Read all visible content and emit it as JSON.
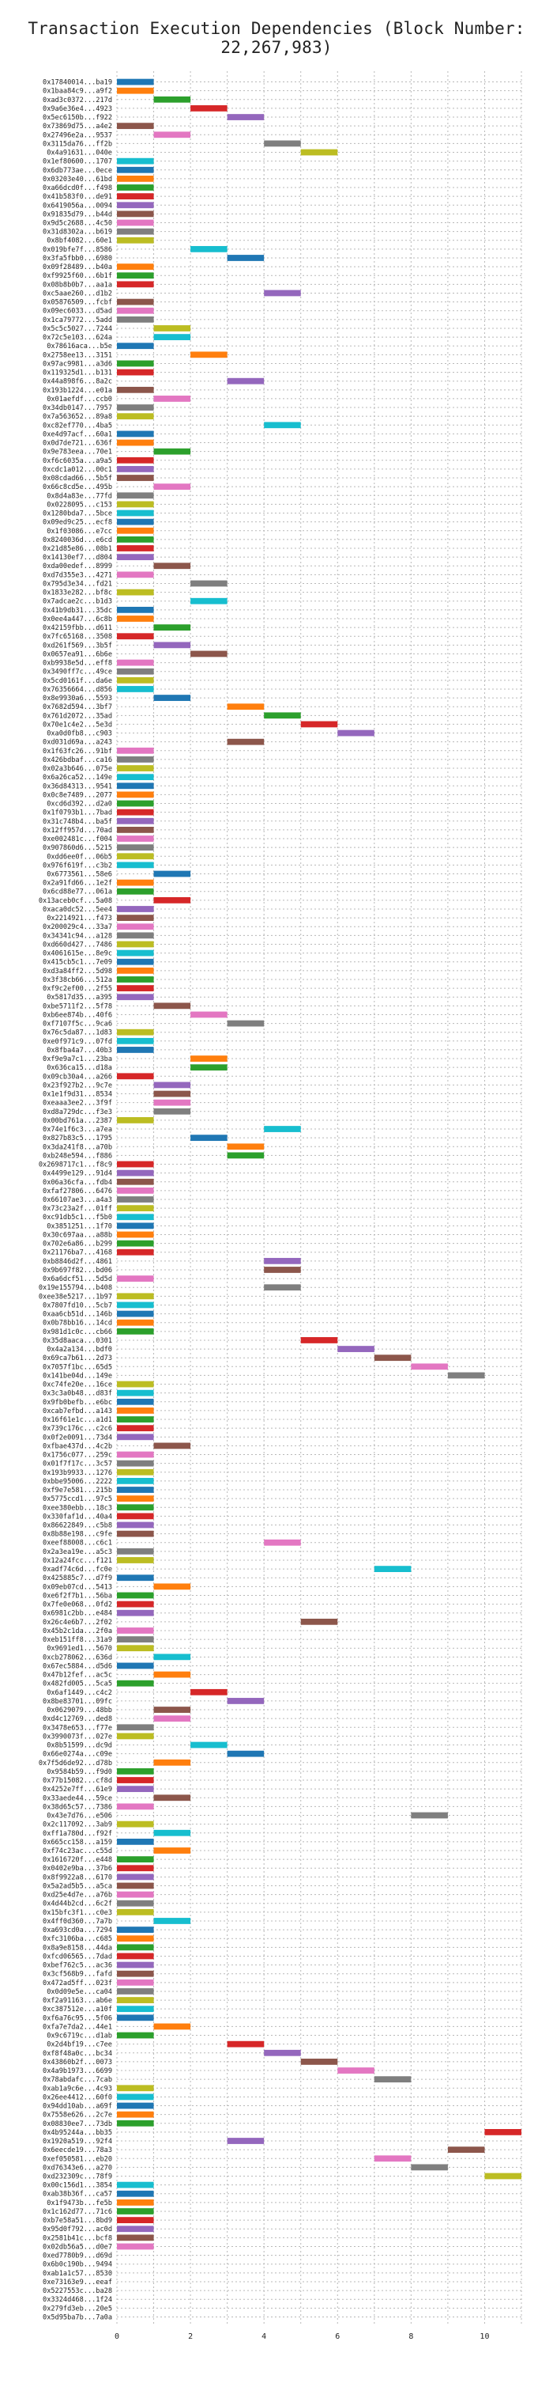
{
  "chart_data": {
    "type": "bar",
    "orientation": "horizontal",
    "title": "Transaction Execution Dependencies (Block Number: 22,267,983)",
    "xlabel": "",
    "ylabel": "",
    "xlim": [
      0,
      11
    ],
    "xticks": [
      "0",
      "2",
      "4",
      "6",
      "8",
      "10"
    ],
    "grid": true,
    "legend": "none",
    "bar_span": 1,
    "palette": [
      "#1f77b4",
      "#ff7f0e",
      "#2ca02c",
      "#d62728",
      "#9467bd",
      "#8c564b",
      "#e377c2",
      "#7f7f7f",
      "#bcbd22",
      "#17becf"
    ],
    "transactions": [
      "0x17840014...ba19",
      "0x1baa84c9...a9f2",
      "0xad3c0372...217d",
      "0x9a6e36e4...4923",
      "0x5ec6150b...f922",
      "0x73869d75...a4e2",
      "0x27496e2a...9537",
      "0x3115da76...ff2b",
      "0x4a91631...040e",
      "0x1ef80600...1707",
      "0x6db773ae...0ece",
      "0x03203e40...61bd",
      "0xa66dcd0f...f498",
      "0x41b583f0...de91",
      "0x6419056a...0094",
      "0x91835d79...b44d",
      "0x9d5c2688...4c50",
      "0x31d8302a...b619",
      "0x8bf4082...60e1",
      "0x019bfe7f...8586",
      "0x3fa5fbb0...6980",
      "0x09f28489...b40a",
      "0xf9925f60...6b1f",
      "0x08b8b0b7...aa1a",
      "0xc5aae260...d1b2",
      "0x05876509...fcbf",
      "0x09ec6033...d5ad",
      "0x1ca79772...5add",
      "0x5c5c5027...7244",
      "0x72c5e103...624a",
      "0x78616aca...b5e",
      "0x2758ee13...3151",
      "0x97ac9981...a3d6",
      "0x119325d1...b131",
      "0x44a898f6...8a2c",
      "0x193b1224...e01a",
      "0x01aefdf...ccb0",
      "0x34db0147...7957",
      "0x7a563652...89a8",
      "0xc82ef770...4ba5",
      "0xe4d97acf...60a1",
      "0x0d7de721...636f",
      "0x9e783eea...70e1",
      "0xf6c6035a...a9a5",
      "0xcdc1a012...00c1",
      "0x08cdad66...5b5f",
      "0x66c8cd5e...495b",
      "0x8d4a83e...77fd",
      "0x0228095...c153",
      "0x1280bda7...5bce",
      "0x09ed9c25...ecf8",
      "0x1f03086...e7cc",
      "0x8240036d...e6cd",
      "0x21d85e86...08b1",
      "0x14130ef7...d804",
      "0xda00edef...8999",
      "0xd7d355e3...4271",
      "0x795d3e34...fd21",
      "0x1833e282...bf8c",
      "0x7adcae2c...b1d3",
      "0x41b9db31...35dc",
      "0x0ee4a447...6c8b",
      "0x42159fbb...d611",
      "0x7fc65168...3508",
      "0xd261f569...3b5f",
      "0x0657ea91...6b6e",
      "0xb9938e5d...eff8",
      "0x3490ff7c...49ce",
      "0x5cd0161f...da6e",
      "0x76356664...d856",
      "0x8e9930a6...5593",
      "0x7682d594...3bf7",
      "0x761d2072...35ad",
      "0x70e1c4e2...5e3d",
      "0xa0d0fb8...c903",
      "0xd031d69a...a243",
      "0x1f63fc26...91bf",
      "0x426bdbaf...ca16",
      "0x02a3b646...075e",
      "0x6a26ca52...149e",
      "0x36d84313...9541",
      "0x0c8e7489...2077",
      "0xcd6d392...d2a0",
      "0x1f0793b1...7bad",
      "0x31c748b4...ba5f",
      "0x12ff957d...70ad",
      "0xe002481c...f004",
      "0x907860d6...5215",
      "0xdd6ee0f...06b5",
      "0x976f619f...c3b2",
      "0x6773561...58e6",
      "0x2a91fd66...1e2f",
      "0x6cd88e77...061a",
      "0x13aceb0cf...5a08",
      "0xaca0dc52...5ee4",
      "0x2214921...f473",
      "0x200029c4...33a7",
      "0x34341c94...a128",
      "0xd660d427...7486",
      "0x4061615e...8e9c",
      "0x415cb5c1...7e09",
      "0xd3a84ff2...5d98",
      "0x3f38cb66...512a",
      "0xf9c2ef00...2f55",
      "0x5817d35...a395",
      "0xbe5711f2...5f78",
      "0xb6ee874b...40f6",
      "0xf7107f5c...9ca6",
      "0x76c5da87...1d83",
      "0xe0f971c9...07fd",
      "0x8fba4a7...40b3",
      "0xf9e9a7c1...23ba",
      "0x636ca15...d18a",
      "0x09cb30a4...a266",
      "0x23f927b2...9c7e",
      "0x1e1f9d31...8534",
      "0xeaaa3ee2...3f9f",
      "0xd8a729dc...f3e3",
      "0x00bd761a...2387",
      "0x74e1f6c3...a7ea",
      "0x827b83c5...1795",
      "0x3da241f8...a70b",
      "0xb248e594...f886",
      "0x2698717c1...f8c9",
      "0x4499e129...91d4",
      "0x06a36cfa...fdb4",
      "0xfaf27806...6476",
      "0x66107ae3...a4a3",
      "0x73c23a2f...01ff",
      "0xc91db5c1...f5b0",
      "0x3851251...1f70",
      "0x30c697aa...a88b",
      "0x702e6a86...b299",
      "0x21176ba7...4168",
      "0xb8846d2f...4861",
      "0x9b697f82...bd06",
      "0x6a6dcf51...5d5d",
      "0x19e155794...b408",
      "0xee38e5217...1b97",
      "0x7807fd10...5cb7",
      "0xaa6cb51d...146b",
      "0x0b78bb16...14cd",
      "0x981d1c0c...cb66",
      "0x35d8aaca...0301",
      "0x4a2a134...bdf0",
      "0x69ca7b61...2d73",
      "0x7057f1bc...65d5",
      "0x141be04d...149e",
      "0xc74fe20e...16ce",
      "0x3c3a0b48...d83f",
      "0x9fb0befb...e6bc",
      "0xcab7efbd...a143",
      "0x16f61e1c...a1d1",
      "0x739c176c...c2c6",
      "0x0f2e0091...73d4",
      "0xfbae437d...4c2b",
      "0x1756c077...259c",
      "0x01f7f17c...3c57",
      "0x193b9933...1276",
      "0xbbe95006...2222",
      "0xf9e7e581...215b",
      "0x5775ccd1...97c5",
      "0xee380ebb...18c3",
      "0x330faf1d...40a4",
      "0x86622849...c5b8",
      "0x8b88e198...c9fe",
      "0xeef88008...c6c1",
      "0x2a3ea19e...a5c3",
      "0x12a24fcc...f121",
      "0xadf74c6d...fc0e",
      "0x425885c7...d7f9",
      "0x09eb07cd...5413",
      "0xe6f2f7b1...56ba",
      "0x7fe0e068...0fd2",
      "0x6981c2bb...e484",
      "0x26c4e6b7...2f02",
      "0x45b2c1da...2f0a",
      "0xeb151ff8...31a9",
      "0x9691ed1...5670",
      "0xcb278062...636d",
      "0x67ec5884...d5d6",
      "0x47b12fef...ac5c",
      "0x482fd005...5ca5",
      "0x6af1449...c4c2",
      "0x8be83701...09fc",
      "0x0629079...48bb",
      "0xd4c12769...ded8",
      "0x3478e653...f77e",
      "0x3990073f...027e",
      "0x8b51599...dc9d",
      "0x66e0274a...c09e",
      "0x7f5d6de92...d78b",
      "0x9584b59...f9d0",
      "0x77b15082...cf8d",
      "0x4252e7ff...61e9",
      "0x33aede44...59ce",
      "0x38d65c57...7386",
      "0x43e7d76...e506",
      "0x2c117092...3ab9",
      "0xff1a780d...f92f",
      "0x665cc158...a159",
      "0xf74c23ac...c55d",
      "0x1616720f...e448",
      "0x0402e9ba...37b6",
      "0x8f9922a8...6170",
      "0x5a2ad5b5...a5ca",
      "0xd25e4d7e...a76b",
      "0x4d44b2cd...6c2f",
      "0x15bfc3f1...c0e3",
      "0x4ff0d360...7a7b",
      "0xa693cd0a...7294",
      "0xfc3106ba...c685",
      "0x8a9e8158...44da",
      "0xfcd06565...7dad",
      "0xbef762c5...ac36",
      "0x3cf568b9...fafd",
      "0x472ad5ff...023f",
      "0x0d09e5e...ca04",
      "0xf2a91163...ab6e",
      "0xc387512e...a10f",
      "0xf6a76c95...5f06",
      "0xfa7e7da2...44e1",
      "0x9c6719c...d1ab",
      "0x2d4bf19...c7ee",
      "0xf8f48a0c...bc34",
      "0x43860b2f...0073",
      "0x4a9b1973...6699",
      "0x78abdafc...7cab",
      "0xab1a9c6e...4c93",
      "0x26ee4412...60f0",
      "0x94dd10ab...a69f",
      "0x7558e626...2c7e",
      "0x08830ee7...73db",
      "0x4b95244a...bb35",
      "0x1920a519...92f4",
      "0x6eecde19...78a3",
      "0xef050581...eb20",
      "0xd76343e6...a270",
      "0xd232309c...78f9",
      "0x00c156d1...3854",
      "0xab38b36f...ca57",
      "0x1f9473b...fe5b",
      "0x1c162d77...71c6",
      "0xb7e58a51...8bd9",
      "0x95d0f792...ac0d",
      "0x2581b41c...bcf8",
      "0x02db56a5...d0e7",
      "0xed7780b9...d69d",
      "0x6b0c190b...9494",
      "0xab1a1c57...8530",
      "0xe73163e9...eeaf",
      "0x5227553c...ba28",
      "0x3324d468...1f24",
      "0x279fd3eb...20e5",
      "0x5d95ba7b...7a0a"
    ],
    "starts": [
      0,
      0,
      1,
      2,
      3,
      0,
      1,
      4,
      5,
      0,
      0,
      0,
      0,
      0,
      0,
      0,
      0,
      0,
      0,
      2,
      3,
      0,
      0,
      0,
      4,
      0,
      0,
      0,
      1,
      1,
      0,
      2,
      0,
      0,
      3,
      0,
      1,
      0,
      0,
      4,
      0,
      0,
      1,
      0,
      0,
      0,
      1,
      0,
      0,
      0,
      0,
      0,
      0,
      0,
      0,
      1,
      0,
      2,
      0,
      2,
      0,
      0,
      1,
      0,
      1,
      2,
      0,
      0,
      0,
      0,
      1,
      3,
      4,
      5,
      6,
      3,
      0,
      0,
      0,
      0,
      0,
      0,
      0,
      0,
      0,
      0,
      0,
      0,
      0,
      0,
      1,
      0,
      0,
      1,
      0,
      0,
      0,
      0,
      0,
      0,
      0,
      0,
      0,
      0,
      0,
      1,
      2,
      3,
      0,
      0,
      0,
      2,
      2,
      0,
      1,
      1,
      1,
      1,
      0,
      4,
      2,
      3,
      3,
      0,
      0,
      0,
      0,
      0,
      0,
      0,
      0,
      0,
      0,
      0,
      4,
      4,
      0,
      4,
      0,
      0,
      0,
      0,
      0,
      5,
      6,
      7,
      8,
      9,
      0,
      0,
      0,
      0,
      0,
      0,
      0,
      1,
      0,
      0,
      0,
      0,
      0,
      0,
      0,
      0,
      0,
      0,
      4,
      0,
      0,
      7,
      0,
      1,
      0,
      0,
      0,
      5,
      0,
      0,
      0,
      1,
      0,
      1,
      0,
      2,
      3,
      1,
      1,
      0,
      0,
      2,
      3,
      1,
      0,
      0,
      0,
      1,
      0,
      8,
      0,
      1,
      0,
      1,
      0,
      0,
      0,
      0,
      0,
      0,
      0,
      1,
      0,
      0,
      0,
      0,
      0,
      0,
      0,
      0,
      0,
      0,
      0,
      1,
      0,
      3,
      4,
      5,
      6,
      7,
      0,
      0,
      0,
      0,
      0,
      10,
      3,
      9,
      7,
      8,
      10,
      0,
      0,
      0,
      0,
      0,
      0,
      0,
      0
    ],
    "durations": [
      1,
      1,
      1,
      1,
      1,
      1,
      1,
      1,
      1,
      1,
      1,
      1,
      1,
      1,
      1,
      1,
      1,
      1,
      1,
      1,
      1,
      1,
      1,
      1,
      1,
      1,
      1,
      1,
      1,
      1,
      1,
      1,
      1,
      1,
      1,
      1,
      1,
      1,
      1,
      1,
      1,
      1,
      1,
      1,
      1,
      1,
      1,
      1,
      1,
      1,
      1,
      1,
      1,
      1,
      1,
      1,
      1,
      1,
      1,
      1,
      1,
      1,
      1,
      1,
      1,
      1,
      1,
      1,
      1,
      1,
      1,
      1,
      1,
      1,
      1,
      1,
      1,
      1,
      1,
      1,
      1,
      1,
      1,
      1,
      1,
      1,
      1,
      1,
      1,
      1,
      1,
      1,
      1,
      1,
      1,
      1,
      1,
      1,
      1,
      1,
      1,
      1,
      1,
      1,
      1,
      1,
      1,
      1,
      1,
      1,
      1,
      1,
      1,
      1,
      1,
      1,
      1,
      1,
      1,
      1,
      1,
      1,
      1,
      1,
      1,
      1,
      1,
      1,
      1,
      1,
      1,
      1,
      1,
      1,
      1,
      1,
      1,
      1,
      1,
      1,
      1,
      1,
      1,
      1,
      1,
      1,
      1,
      1,
      1,
      1,
      1,
      1,
      1,
      1,
      1,
      1,
      1,
      1,
      1,
      1,
      1,
      1,
      1,
      1,
      1,
      1,
      1,
      1,
      1,
      1,
      1,
      1,
      1,
      1,
      1,
      1,
      1,
      1,
      1,
      1,
      1,
      1,
      1,
      1,
      1,
      1,
      1,
      1,
      1,
      1,
      1,
      1,
      1,
      1,
      1,
      1,
      1,
      1,
      1,
      1,
      1,
      1,
      1,
      1,
      1,
      1,
      1,
      1,
      1,
      1,
      1,
      1,
      1,
      1,
      1,
      1,
      1,
      1,
      1,
      1,
      1,
      1,
      1,
      1,
      1,
      1,
      1,
      1,
      1,
      1,
      1,
      1,
      1,
      1,
      1,
      1,
      1,
      1,
      1,
      1,
      1,
      1,
      1,
      1,
      1,
      1,
      1
    ]
  }
}
